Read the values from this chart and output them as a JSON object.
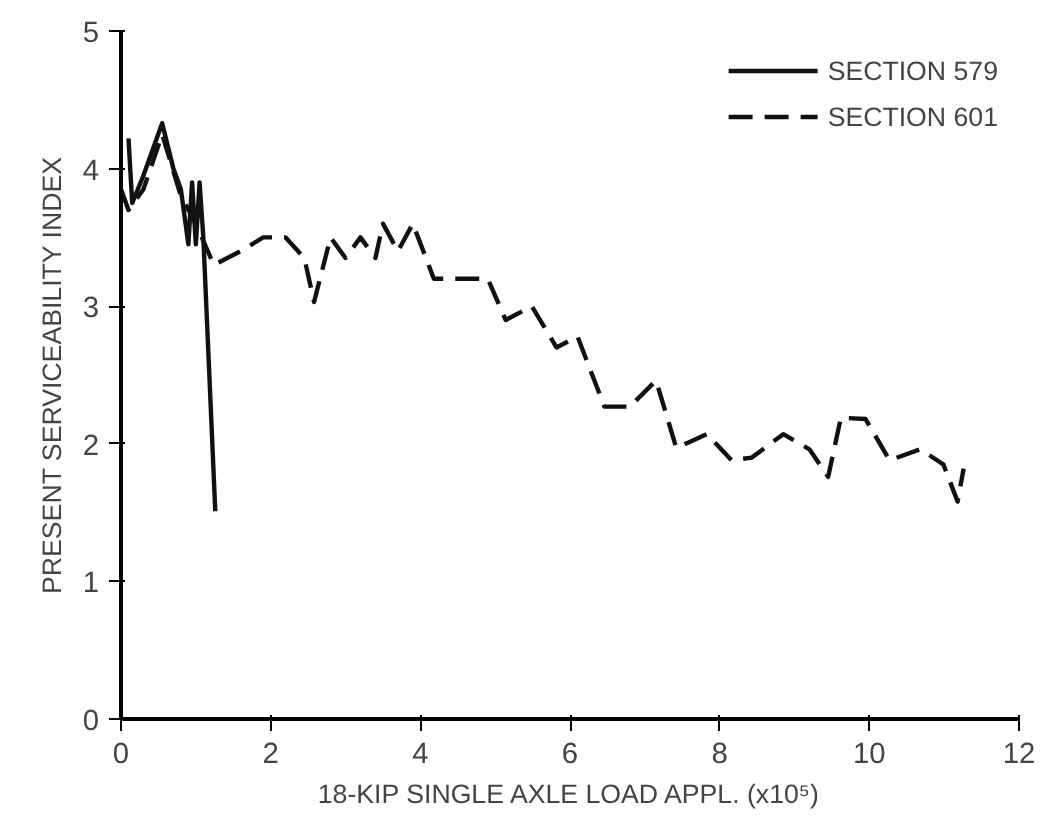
{
  "chart_data": {
    "type": "line",
    "xlabel": "18-KIP SINGLE AXLE LOAD APPL. (x10⁵)",
    "ylabel": "PRESENT SERVICEABILITY INDEX",
    "xlim": [
      0,
      12
    ],
    "ylim": [
      0,
      5
    ],
    "xticks": [
      0,
      2,
      4,
      6,
      8,
      10,
      12
    ],
    "yticks": [
      0,
      1,
      2,
      3,
      4,
      5
    ],
    "grid": false,
    "legend": "top right",
    "marker": "none",
    "series": [
      {
        "name": "SECTION 579",
        "color": "#111111",
        "line_style": "solid",
        "x": [
          0.1,
          0.15,
          0.3,
          0.55,
          0.7,
          0.8,
          0.9,
          0.95,
          1.0,
          1.05,
          1.1,
          1.26
        ],
        "values": [
          4.22,
          3.75,
          3.95,
          4.33,
          4.0,
          3.85,
          3.45,
          3.9,
          3.45,
          3.9,
          3.5,
          1.51
        ]
      },
      {
        "name": "SECTION 601",
        "color": "#111111",
        "line_style": "dashed",
        "x": [
          0.0,
          0.1,
          0.3,
          0.55,
          0.8,
          1.0,
          1.24,
          1.6,
          1.9,
          2.2,
          2.45,
          2.58,
          2.8,
          3.0,
          3.2,
          3.4,
          3.5,
          3.7,
          3.9,
          4.18,
          4.9,
          5.14,
          5.49,
          5.82,
          6.1,
          6.46,
          6.8,
          7.15,
          7.42,
          7.83,
          8.16,
          8.43,
          8.85,
          9.2,
          9.45,
          9.62,
          9.95,
          10.27,
          10.68,
          10.99,
          11.18,
          11.26
        ],
        "values": [
          3.85,
          3.7,
          3.85,
          4.25,
          3.8,
          3.6,
          3.3,
          3.4,
          3.5,
          3.5,
          3.35,
          3.03,
          3.5,
          3.35,
          3.5,
          3.35,
          3.6,
          3.4,
          3.6,
          3.2,
          3.2,
          2.9,
          3.0,
          2.7,
          2.78,
          2.27,
          2.27,
          2.46,
          1.97,
          2.07,
          1.88,
          1.9,
          2.07,
          1.96,
          1.76,
          2.19,
          2.18,
          1.88,
          1.96,
          1.85,
          1.58,
          1.82
        ]
      }
    ]
  }
}
